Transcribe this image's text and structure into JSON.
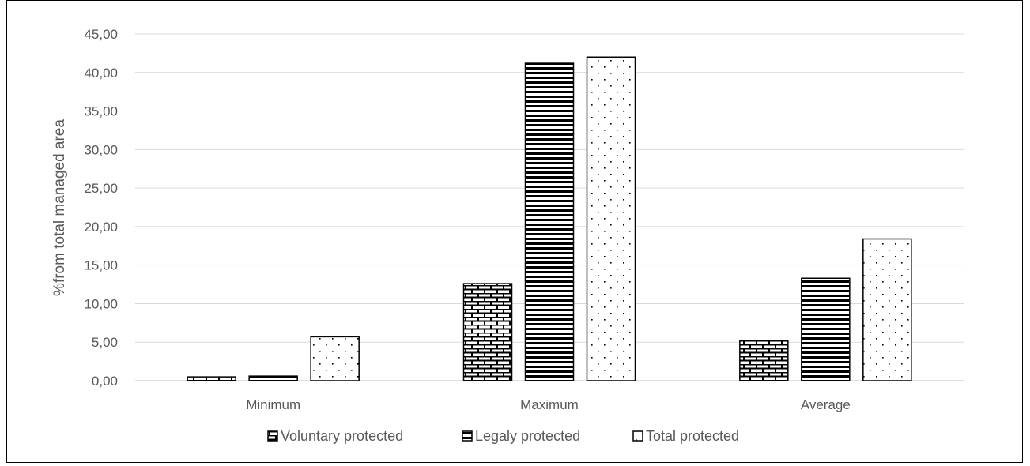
{
  "chart_data": {
    "type": "bar",
    "title": "",
    "xlabel": "",
    "ylabel": "%from total managed area",
    "categories": [
      "Minimum",
      "Maximum",
      "Average"
    ],
    "series": [
      {
        "name": "Voluntary protected",
        "pattern": "brick",
        "values": [
          0.5,
          12.6,
          5.2
        ]
      },
      {
        "name": "Legaly protected",
        "pattern": "horizontal-lines",
        "values": [
          0.6,
          41.2,
          13.3
        ]
      },
      {
        "name": "Total protected",
        "pattern": "dots",
        "values": [
          5.7,
          42.0,
          18.4
        ]
      }
    ],
    "ylim": [
      0,
      45
    ],
    "yticks": [
      "0,00",
      "5,00",
      "10,00",
      "15,00",
      "20,00",
      "25,00",
      "30,00",
      "35,00",
      "40,00",
      "45,00"
    ],
    "grid": true,
    "legend_position": "bottom",
    "colors": {
      "bar_stroke": "#000000",
      "grid": "#d9d9d9",
      "text": "#595959"
    }
  }
}
